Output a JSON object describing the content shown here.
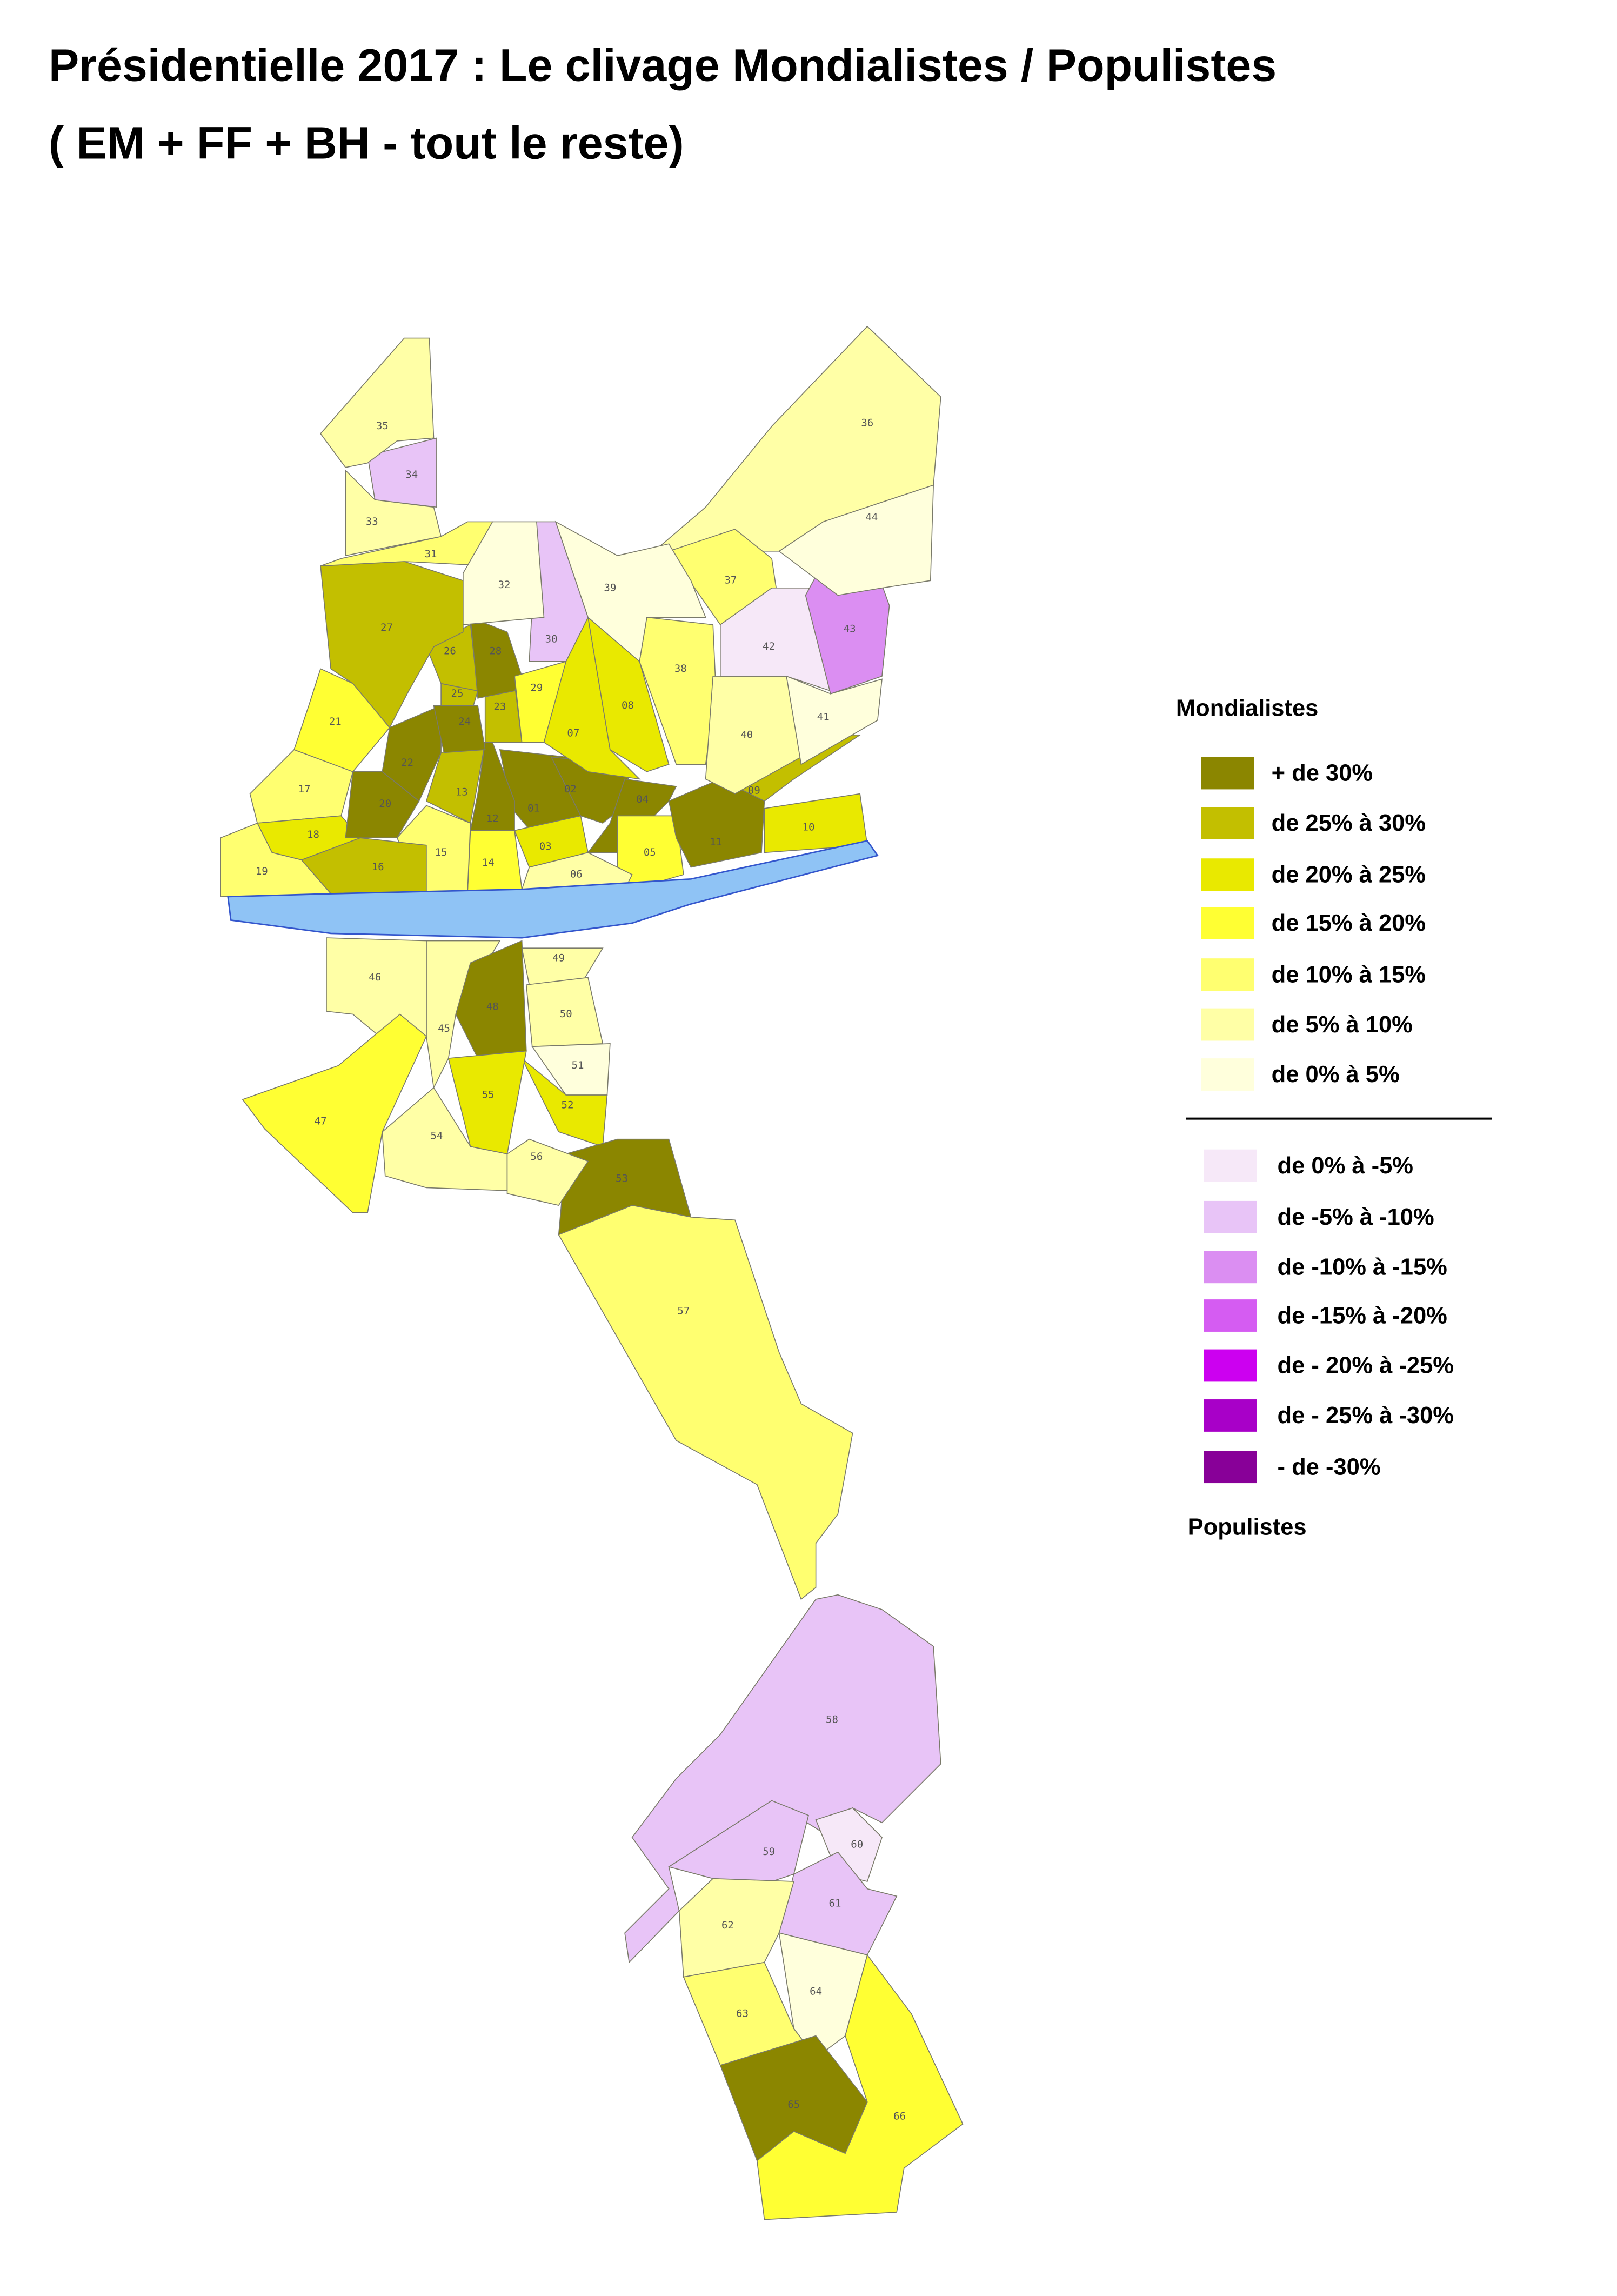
{
  "title": [
    "Présidentielle 2017 : Le clivage Mondialistes / Populistes",
    "( EM + FF + BH  - tout le reste)"
  ],
  "legend": {
    "top_heading": "Mondialistes",
    "bottom_heading": "Populistes",
    "items": [
      {
        "label": "+ de 30%",
        "color": "#8b8600"
      },
      {
        "label": "de 25% à 30%",
        "color": "#c3bf00"
      },
      {
        "label": "de 20% à 25%",
        "color": "#e9e900"
      },
      {
        "label": "de 15% à 20%",
        "color": "#ffff33"
      },
      {
        "label": "de 10% à 15%",
        "color": "#ffff70"
      },
      {
        "label": "de 5% à 10%",
        "color": "#ffffa6"
      },
      {
        "label": "de 0% à 5%",
        "color": "#ffffdc"
      },
      {
        "label": "de 0% à -5%",
        "color": "#f6e8f8"
      },
      {
        "label": "de -5% à -10%",
        "color": "#e8c4f7"
      },
      {
        "label": "de -10% à -15%",
        "color": "#db8ef2"
      },
      {
        "label": "de -15% à -20%",
        "color": "#d55cf2"
      },
      {
        "label": "de - 20% à -25%",
        "color": "#cc00f0"
      },
      {
        "label": "de - 25% à -30%",
        "color": "#a800c8"
      },
      {
        "label": "- de -30%",
        "color": "#880098"
      }
    ]
  },
  "river_color": "#8fc3f5",
  "regions": [
    {
      "label": "01",
      "color": "#8b8600"
    },
    {
      "label": "02",
      "color": "#8b8600"
    },
    {
      "label": "03",
      "color": "#e9e900"
    },
    {
      "label": "04",
      "color": "#8b8600"
    },
    {
      "label": "05",
      "color": "#ffff33"
    },
    {
      "label": "06",
      "color": "#ffffa6"
    },
    {
      "label": "07",
      "color": "#e9e900"
    },
    {
      "label": "08",
      "color": "#e9e900"
    },
    {
      "label": "09",
      "color": "#c3bf00"
    },
    {
      "label": "10",
      "color": "#e9e900"
    },
    {
      "label": "11",
      "color": "#8b8600"
    },
    {
      "label": "12",
      "color": "#8b8600"
    },
    {
      "label": "13",
      "color": "#c3bf00"
    },
    {
      "label": "14",
      "color": "#ffff33"
    },
    {
      "label": "15",
      "color": "#ffff70"
    },
    {
      "label": "16",
      "color": "#c3bf00"
    },
    {
      "label": "17",
      "color": "#ffff70"
    },
    {
      "label": "18",
      "color": "#e9e900"
    },
    {
      "label": "19",
      "color": "#ffff70"
    },
    {
      "label": "20",
      "color": "#8b8600"
    },
    {
      "label": "21",
      "color": "#ffff33"
    },
    {
      "label": "22",
      "color": "#8b8600"
    },
    {
      "label": "23",
      "color": "#c3bf00"
    },
    {
      "label": "24",
      "color": "#8b8600"
    },
    {
      "label": "25",
      "color": "#c3bf00"
    },
    {
      "label": "26",
      "color": "#c3bf00"
    },
    {
      "label": "27",
      "color": "#c3bf00"
    },
    {
      "label": "28",
      "color": "#8b8600"
    },
    {
      "label": "29",
      "color": "#ffff33"
    },
    {
      "label": "30",
      "color": "#e8c4f7"
    },
    {
      "label": "31",
      "color": "#ffff70"
    },
    {
      "label": "32",
      "color": "#ffffdc"
    },
    {
      "label": "33",
      "color": "#ffffa6"
    },
    {
      "label": "34",
      "color": "#e8c4f7"
    },
    {
      "label": "35",
      "color": "#ffffa6"
    },
    {
      "label": "36",
      "color": "#ffffa6"
    },
    {
      "label": "37",
      "color": "#ffff70"
    },
    {
      "label": "38",
      "color": "#ffff70"
    },
    {
      "label": "39",
      "color": "#ffffdc"
    },
    {
      "label": "40",
      "color": "#ffffa6"
    },
    {
      "label": "41",
      "color": "#ffffdc"
    },
    {
      "label": "42",
      "color": "#f6e8f8"
    },
    {
      "label": "43",
      "color": "#db8ef2"
    },
    {
      "label": "44",
      "color": "#ffffdc"
    },
    {
      "label": "45",
      "color": "#ffffa6"
    },
    {
      "label": "46",
      "color": "#ffffa6"
    },
    {
      "label": "47",
      "color": "#ffff33"
    },
    {
      "label": "48",
      "color": "#8b8600"
    },
    {
      "label": "49",
      "color": "#ffffa6"
    },
    {
      "label": "50",
      "color": "#ffffa6"
    },
    {
      "label": "51",
      "color": "#ffffdc"
    },
    {
      "label": "52",
      "color": "#e9e900"
    },
    {
      "label": "53",
      "color": "#8b8600"
    },
    {
      "label": "54",
      "color": "#ffffa6"
    },
    {
      "label": "55",
      "color": "#e9e900"
    },
    {
      "label": "56",
      "color": "#ffffa6"
    },
    {
      "label": "57",
      "color": "#ffff70"
    },
    {
      "label": "58",
      "color": "#e8c4f7"
    },
    {
      "label": "59",
      "color": "#e8c4f7"
    },
    {
      "label": "60",
      "color": "#f6e8f8"
    },
    {
      "label": "61",
      "color": "#e8c4f7"
    },
    {
      "label": "62",
      "color": "#ffffa6"
    },
    {
      "label": "63",
      "color": "#ffff70"
    },
    {
      "label": "64",
      "color": "#ffffdc"
    },
    {
      "label": "65",
      "color": "#8b8600"
    },
    {
      "label": "66",
      "color": "#ffff33"
    }
  ]
}
